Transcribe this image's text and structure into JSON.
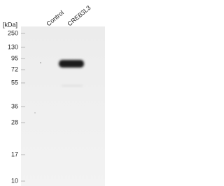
{
  "unit_label": "[kDa]",
  "markers": [
    250,
    130,
    95,
    72,
    55,
    36,
    28,
    17,
    10
  ],
  "lanes": [
    "Control",
    "CREB3L3"
  ]
}
